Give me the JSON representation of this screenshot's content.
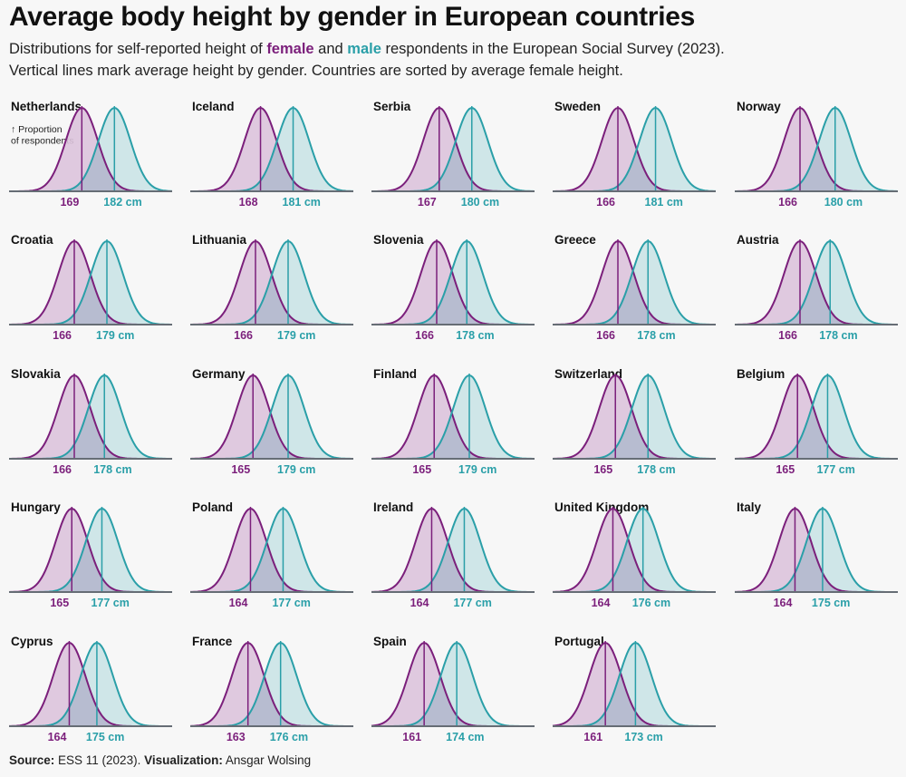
{
  "title": "Average body height by gender in European countries",
  "subtitle": {
    "line1_before": "Distributions for self-reported height of ",
    "female_label": "female",
    "line1_middle": " and ",
    "male_label": "male",
    "line1_after": " respondents in the European Social Survey (2023).",
    "line2": "Vertical lines mark average height by gender. Countries are sorted by average female height."
  },
  "source": {
    "source_label": "Source:",
    "source_text": " ESS 11 (2023). ",
    "viz_label": "Visualization:",
    "viz_text": " Ansgar Wolsing"
  },
  "colors": {
    "female": "#7b1f7b",
    "male": "#2a9fa8",
    "female_fill": "#dcc3dc",
    "male_fill": "#c8e3e5",
    "overlap_fill": "#b5b8cd",
    "baseline": "#666d75"
  },
  "chart_data": {
    "type": "area",
    "subtype": "density small multiples",
    "x_unit": "cm",
    "y_annotation": "↑ Proportion\nof respondents",
    "unit_suffix": " cm",
    "panels": [
      {
        "country": "Netherlands",
        "female_avg": 169,
        "male_avg": 182
      },
      {
        "country": "Iceland",
        "female_avg": 168,
        "male_avg": 181
      },
      {
        "country": "Serbia",
        "female_avg": 167,
        "male_avg": 180
      },
      {
        "country": "Sweden",
        "female_avg": 166,
        "male_avg": 181
      },
      {
        "country": "Norway",
        "female_avg": 166,
        "male_avg": 180
      },
      {
        "country": "Croatia",
        "female_avg": 166,
        "male_avg": 179
      },
      {
        "country": "Lithuania",
        "female_avg": 166,
        "male_avg": 179
      },
      {
        "country": "Slovenia",
        "female_avg": 166,
        "male_avg": 178
      },
      {
        "country": "Greece",
        "female_avg": 166,
        "male_avg": 178
      },
      {
        "country": "Austria",
        "female_avg": 166,
        "male_avg": 178
      },
      {
        "country": "Slovakia",
        "female_avg": 166,
        "male_avg": 178
      },
      {
        "country": "Germany",
        "female_avg": 165,
        "male_avg": 179
      },
      {
        "country": "Finland",
        "female_avg": 165,
        "male_avg": 179
      },
      {
        "country": "Switzerland",
        "female_avg": 165,
        "male_avg": 178
      },
      {
        "country": "Belgium",
        "female_avg": 165,
        "male_avg": 177
      },
      {
        "country": "Hungary",
        "female_avg": 165,
        "male_avg": 177
      },
      {
        "country": "Poland",
        "female_avg": 164,
        "male_avg": 177
      },
      {
        "country": "Ireland",
        "female_avg": 164,
        "male_avg": 177
      },
      {
        "country": "United Kingdom",
        "female_avg": 164,
        "male_avg": 176
      },
      {
        "country": "Italy",
        "female_avg": 164,
        "male_avg": 175
      },
      {
        "country": "Cyprus",
        "female_avg": 164,
        "male_avg": 175
      },
      {
        "country": "France",
        "female_avg": 163,
        "male_avg": 176
      },
      {
        "country": "Spain",
        "female_avg": 161,
        "male_avg": 174
      },
      {
        "country": "Portugal",
        "female_avg": 161,
        "male_avg": 173
      }
    ]
  }
}
